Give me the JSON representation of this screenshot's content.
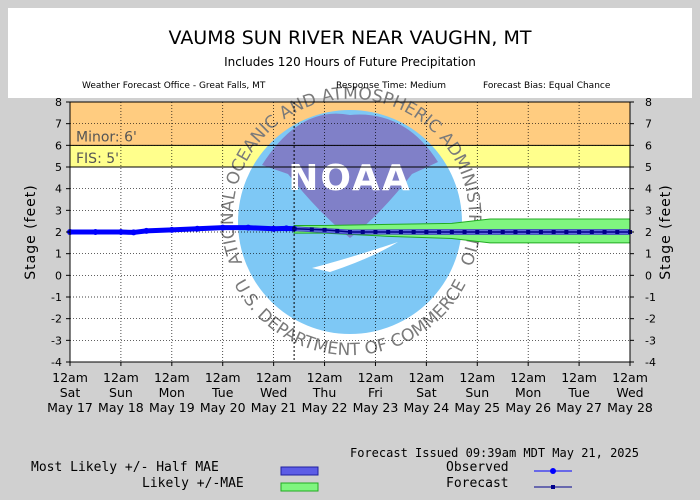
{
  "header": {
    "title": "VAUM8 SUN RIVER NEAR VAUGHN, MT",
    "subtitle": "Includes 120 Hours of Future Precipitation",
    "office": "Weather Forecast Office - Great Falls, MT",
    "response": "Response Time: Medium",
    "bias": "Forecast Bias:  Equal Chance"
  },
  "footer": {
    "issued": "Forecast Issued 09:39am MDT May 21, 2025"
  },
  "legend": {
    "most_likely": "Most Likely +/- Half MAE",
    "likely": "Likely +/-MAE",
    "observed": "Observed",
    "forecast": "Forecast"
  },
  "watermark": {
    "logo_text": "NOAA",
    "ring_top": "NATIONAL OCEANIC AND ATMOSPHERIC ADMINISTRATION",
    "ring_bottom": "U.S. DEPARTMENT OF COMMERCE"
  },
  "colors": {
    "minor_band": "#ffcc80",
    "fis_band": "#ffff8c",
    "observed": "#0000ff",
    "forecast": "#00008b",
    "most_likely_band": "#5c5ce6",
    "likely_band": "#7ff57f",
    "logo_sky": "#7ec8f5",
    "logo_top": "#8080c8"
  },
  "chart_data": {
    "type": "line",
    "ylabel_left": "Stage (feet)",
    "ylabel_right": "Stage (feet)",
    "ylim": [
      -4,
      8
    ],
    "yticks": [
      -4,
      -3,
      -2,
      -1,
      0,
      1,
      2,
      3,
      4,
      5,
      6,
      7,
      8
    ],
    "grid": true,
    "xlim_hours": [
      0,
      264
    ],
    "xticks": [
      {
        "l1": "12am",
        "l2": "Sat",
        "l3": "May 17"
      },
      {
        "l1": "12am",
        "l2": "Sun",
        "l3": "May 18"
      },
      {
        "l1": "12am",
        "l2": "Mon",
        "l3": "May 19"
      },
      {
        "l1": "12am",
        "l2": "Tue",
        "l3": "May 20"
      },
      {
        "l1": "12am",
        "l2": "Wed",
        "l3": "May 21"
      },
      {
        "l1": "12am",
        "l2": "Thu",
        "l3": "May 22"
      },
      {
        "l1": "12am",
        "l2": "Fri",
        "l3": "May 23"
      },
      {
        "l1": "12am",
        "l2": "Sat",
        "l3": "May 24"
      },
      {
        "l1": "12am",
        "l2": "Sun",
        "l3": "May 25"
      },
      {
        "l1": "12am",
        "l2": "Mon",
        "l3": "May 26"
      },
      {
        "l1": "12am",
        "l2": "Tue",
        "l3": "May 27"
      },
      {
        "l1": "12am",
        "l2": "Wed",
        "l3": "May 28"
      }
    ],
    "issued_hour": 105.65,
    "thresholds": [
      {
        "name": "Minor: 6'",
        "value": 6,
        "top": 8
      },
      {
        "name": "FIS: 5'",
        "value": 5,
        "top": 6
      }
    ],
    "observed": {
      "name": "Observed",
      "x": [
        0,
        12,
        24,
        30,
        36,
        48,
        60,
        72,
        84,
        96,
        102,
        105.65
      ],
      "y": [
        2.0,
        2.0,
        2.0,
        1.98,
        2.05,
        2.1,
        2.15,
        2.2,
        2.2,
        2.15,
        2.17,
        2.15
      ]
    },
    "forecast": {
      "name": "Forecast",
      "x": [
        105.65,
        114,
        120,
        126,
        132,
        138,
        144,
        150,
        156,
        162,
        168,
        174,
        180,
        186,
        192,
        198,
        204,
        210,
        216,
        222,
        228,
        234,
        240,
        246,
        252,
        258,
        264
      ],
      "y": [
        2.15,
        2.12,
        2.1,
        2.05,
        2.0,
        2.0,
        2.0,
        2.0,
        2.0,
        2.0,
        2.0,
        2.0,
        2.0,
        2.0,
        2.0,
        2.0,
        2.0,
        2.0,
        2.0,
        2.0,
        2.0,
        2.0,
        2.0,
        2.0,
        2.0,
        2.0,
        2.0
      ]
    },
    "most_likely_band": {
      "name": "Most Likely +/- Half MAE",
      "x": [
        105.65,
        132,
        168,
        264
      ],
      "lower": [
        2.05,
        1.9,
        1.88,
        1.88
      ],
      "upper": [
        2.25,
        2.1,
        2.12,
        2.12
      ]
    },
    "likely_band": {
      "name": "Likely +/-MAE",
      "x": [
        105.65,
        120,
        150,
        180,
        198,
        264
      ],
      "lower": [
        1.95,
        1.95,
        1.8,
        1.7,
        1.5,
        1.5
      ],
      "upper": [
        2.3,
        2.3,
        2.35,
        2.4,
        2.6,
        2.6
      ]
    }
  }
}
